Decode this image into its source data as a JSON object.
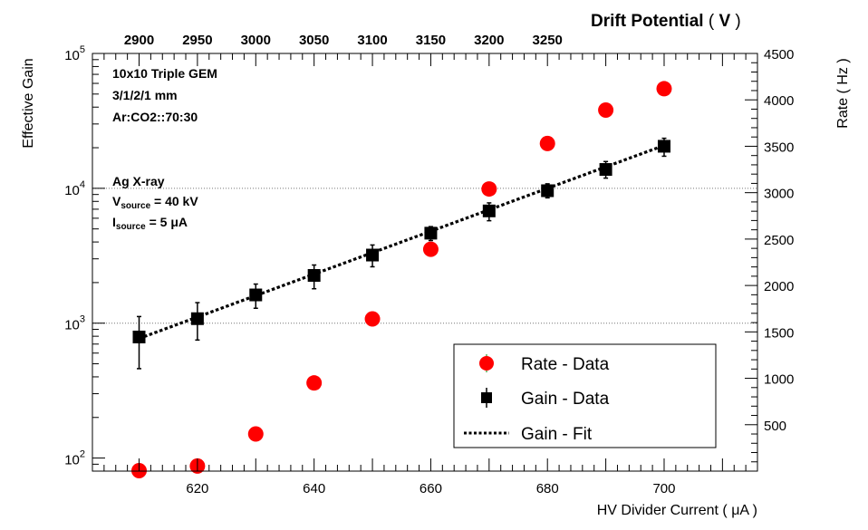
{
  "chart_data": {
    "type": "scatter",
    "x_axis": {
      "label": "HV Divider Current",
      "unit": "μA",
      "range": [
        602,
        716
      ],
      "ticks": [
        620,
        640,
        660,
        680,
        700
      ]
    },
    "top_axis": {
      "label": "Drift Potential",
      "unit": "V",
      "ticks": [
        {
          "value": 2900,
          "current": 610
        },
        {
          "value": 2950,
          "current": 620
        },
        {
          "value": 3000,
          "current": 630
        },
        {
          "value": 3050,
          "current": 640
        },
        {
          "value": 3100,
          "current": 650
        },
        {
          "value": 3150,
          "current": 660
        },
        {
          "value": 3200,
          "current": 670
        },
        {
          "value": 3250,
          "current": 680
        }
      ]
    },
    "y_axis_left": {
      "label": "Effective Gain",
      "scale": "log",
      "range": [
        80,
        100000
      ],
      "ticks": [
        {
          "base": "10",
          "exp": "2",
          "value": 100
        },
        {
          "base": "10",
          "exp": "3",
          "value": 1000
        },
        {
          "base": "10",
          "exp": "4",
          "value": 10000
        },
        {
          "base": "10",
          "exp": "5",
          "value": 100000
        }
      ]
    },
    "y_axis_right": {
      "label": "Rate",
      "unit": "Hz",
      "range": [
        0,
        4500
      ],
      "ticks": [
        500,
        1000,
        1500,
        2000,
        2500,
        3000,
        3500,
        4000,
        4500
      ]
    },
    "series": [
      {
        "name": "Rate - Data",
        "axis": "right",
        "color": "#ff0000",
        "marker": "circle",
        "points": [
          {
            "x": 610,
            "y": 5
          },
          {
            "x": 620,
            "y": 55
          },
          {
            "x": 630,
            "y": 400
          },
          {
            "x": 640,
            "y": 950
          },
          {
            "x": 650,
            "y": 1640
          },
          {
            "x": 660,
            "y": 2390
          },
          {
            "x": 670,
            "y": 3040
          },
          {
            "x": 680,
            "y": 3530
          },
          {
            "x": 690,
            "y": 3890
          },
          {
            "x": 700,
            "y": 4120
          }
        ]
      },
      {
        "name": "Gain - Data",
        "axis": "left",
        "color": "#000000",
        "marker": "square",
        "points": [
          {
            "x": 610,
            "y": 790,
            "err_low": 460,
            "err_high": 1120
          },
          {
            "x": 620,
            "y": 1080,
            "err_low": 750,
            "err_high": 1420
          },
          {
            "x": 630,
            "y": 1620,
            "err_low": 1290,
            "err_high": 1950
          },
          {
            "x": 640,
            "y": 2260,
            "err_low": 1800,
            "err_high": 2700
          },
          {
            "x": 650,
            "y": 3200,
            "err_low": 2620,
            "err_high": 3800
          },
          {
            "x": 660,
            "y": 4650,
            "err_low": 4100,
            "err_high": 5200
          },
          {
            "x": 670,
            "y": 6800,
            "err_low": 5750,
            "err_high": 7800
          },
          {
            "x": 680,
            "y": 9600,
            "err_low": 8500,
            "err_high": 10800
          },
          {
            "x": 690,
            "y": 13800,
            "err_low": 11900,
            "err_high": 15800
          },
          {
            "x": 700,
            "y": 20500,
            "err_low": 17300,
            "err_high": 23500
          }
        ]
      },
      {
        "name": "Gain - Fit",
        "axis": "left",
        "color": "#000000",
        "style": "dotted-line",
        "points": [
          {
            "x": 610,
            "y": 770
          },
          {
            "x": 700,
            "y": 20800
          }
        ]
      }
    ],
    "gridlines_at": [
      1000,
      10000
    ],
    "annotations": {
      "detector": [
        "10x10 Triple GEM",
        "3/1/2/1 mm",
        "Ar:CO2::70:30"
      ],
      "source_title": "Ag X-ray",
      "source_voltage": {
        "symbol": "V",
        "sub": "source",
        "text": " = 40 kV"
      },
      "source_current": {
        "symbol": "I",
        "sub": "source",
        "text": " = 5 μA"
      }
    },
    "legend": {
      "position": "bottom-right"
    }
  }
}
